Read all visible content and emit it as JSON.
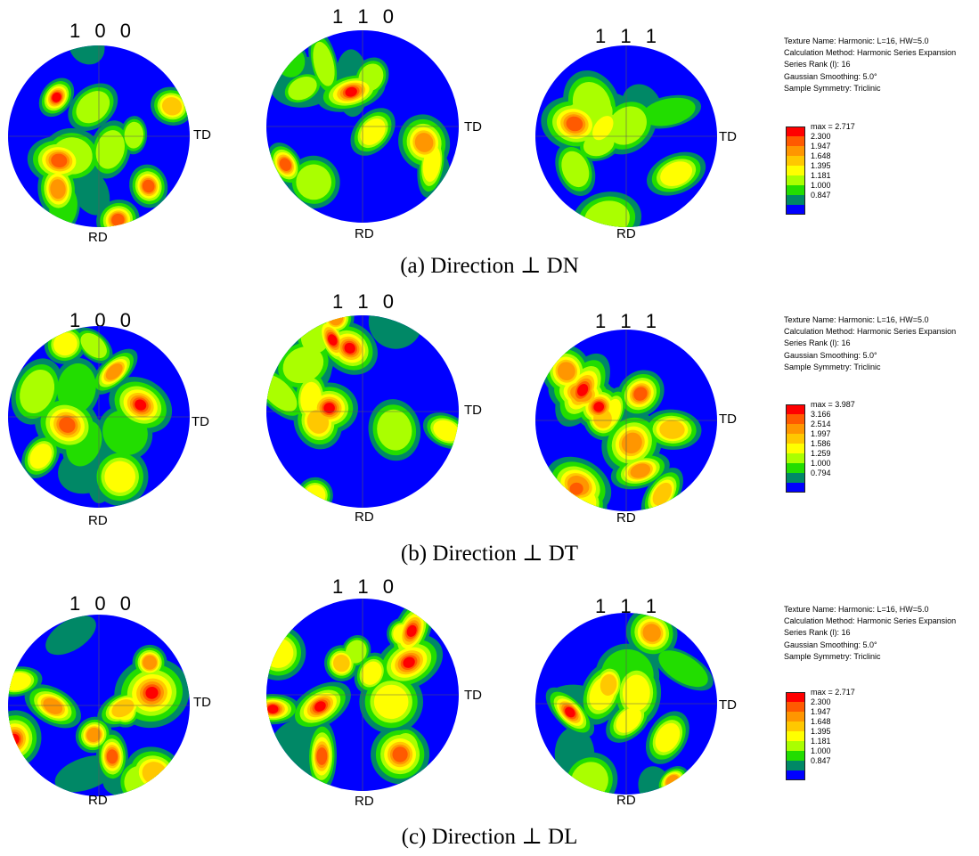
{
  "axis_labels": {
    "rd": "RD",
    "td": "TD"
  },
  "colors": {
    "scale": [
      "#ff0000",
      "#ff5a00",
      "#ff9600",
      "#ffc800",
      "#ffff00",
      "#aaff00",
      "#22dd00",
      "#008866",
      "#0000ff"
    ],
    "low": "#0000ff",
    "background": "#ffffff"
  },
  "rows": [
    {
      "caption": "(a) Direction ⊥ DN",
      "poles": [
        "1 0 0",
        "1 1 0",
        "1 1 1"
      ],
      "info": [
        "Texture Name: Harmonic: L=16, HW=5.0",
        "Calculation Method: Harmonic Series Expansion",
        "Series Rank (l): 16",
        "Gaussian Smoothing: 5.0°",
        "Sample Symmetry: Triclinic"
      ],
      "legend": [
        "max = 2.717",
        "2.300",
        "1.947",
        "1.648",
        "1.395",
        "1.181",
        "1.000",
        "0.847"
      ]
    },
    {
      "caption": "(b) Direction ⊥ DT",
      "poles": [
        "1 0 0",
        "1 1 0",
        "1 1 1"
      ],
      "info": [
        "Texture Name: Harmonic: L=16, HW=5.0",
        "Calculation Method: Harmonic Series Expansion",
        "Series Rank (l): 16",
        "Gaussian Smoothing: 5.0°",
        "Sample Symmetry: Triclinic"
      ],
      "legend": [
        "max = 3.987",
        "3.166",
        "2.514",
        "1.997",
        "1.586",
        "1.259",
        "1.000",
        "0.794"
      ]
    },
    {
      "caption": "(c) Direction ⊥ DL",
      "poles": [
        "1 0 0",
        "1 1 0",
        "1 1 1"
      ],
      "info": [
        "Texture Name: Harmonic: L=16, HW=5.0",
        "Calculation Method: Harmonic Series Expansion",
        "Series Rank (l): 16",
        "Gaussian Smoothing: 5.0°",
        "Sample Symmetry: Triclinic"
      ],
      "legend": [
        "max = 2.717",
        "2.300",
        "1.947",
        "1.648",
        "1.395",
        "1.181",
        "1.000",
        "0.847"
      ]
    }
  ]
}
